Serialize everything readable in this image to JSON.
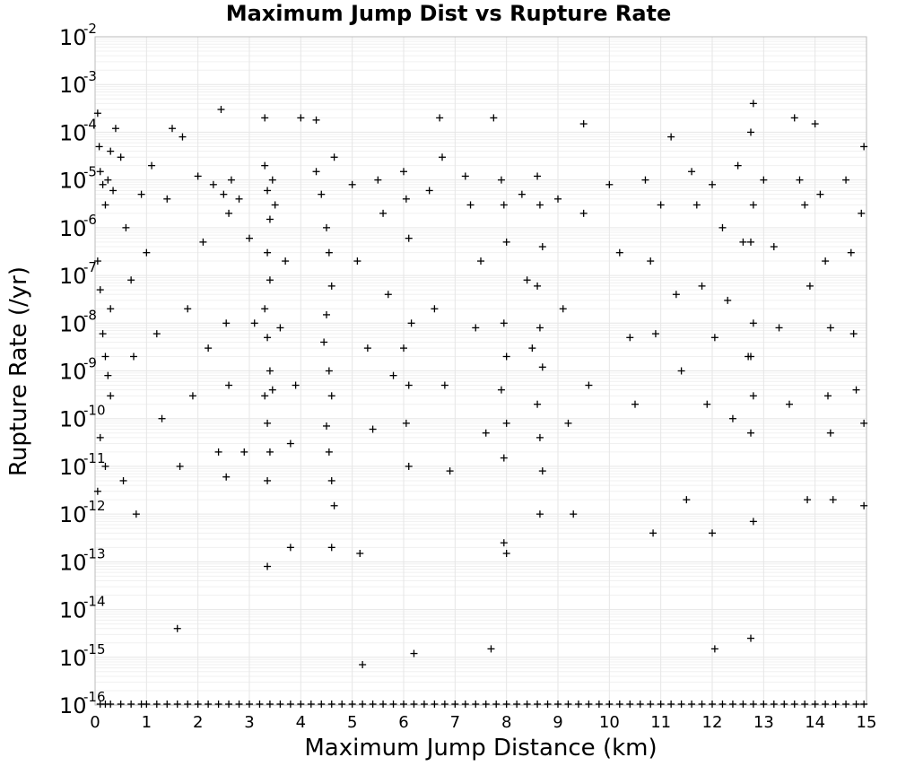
{
  "chart_data": {
    "type": "scatter",
    "title": "Maximum Jump Dist vs Rupture Rate",
    "xlabel": "Maximum Jump Distance (km)",
    "ylabel": "Rupture Rate (/yr)",
    "xlim": [
      0,
      15
    ],
    "ylim": [
      1e-16,
      0.01
    ],
    "yscale": "log",
    "grid": true,
    "legend": "none",
    "marker": "plus",
    "marker_color": "#000000",
    "x_ticks": [
      "0",
      "1",
      "2",
      "3",
      "4",
      "5",
      "6",
      "7",
      "8",
      "9",
      "10",
      "11",
      "12",
      "13",
      "14",
      "15"
    ],
    "y_ticks": [
      {
        "base": "10",
        "exp": "-2",
        "value": 0.01
      },
      {
        "base": "10",
        "exp": "-3",
        "value": 0.001
      },
      {
        "base": "10",
        "exp": "-4",
        "value": 0.0001
      },
      {
        "base": "10",
        "exp": "-5",
        "value": 1e-05
      },
      {
        "base": "10",
        "exp": "-6",
        "value": 1e-06
      },
      {
        "base": "10",
        "exp": "-7",
        "value": 1e-07
      },
      {
        "base": "10",
        "exp": "-8",
        "value": 1e-08
      },
      {
        "base": "10",
        "exp": "-9",
        "value": 1e-09
      },
      {
        "base": "10",
        "exp": "-10",
        "value": 1e-10
      },
      {
        "base": "10",
        "exp": "-11",
        "value": 1e-11
      },
      {
        "base": "10",
        "exp": "-12",
        "value": 1e-12
      },
      {
        "base": "10",
        "exp": "-13",
        "value": 1e-13
      },
      {
        "base": "10",
        "exp": "-14",
        "value": 1e-14
      },
      {
        "base": "10",
        "exp": "-15",
        "value": 1e-15
      },
      {
        "base": "10",
        "exp": "-16",
        "value": 1e-16
      }
    ],
    "points": [
      [
        0.05,
        0.00025
      ],
      [
        0.08,
        5e-05
      ],
      [
        0.1,
        1.5e-05
      ],
      [
        0.15,
        8e-06
      ],
      [
        0.2,
        3e-06
      ],
      [
        0.25,
        1e-05
      ],
      [
        0.3,
        4e-05
      ],
      [
        0.35,
        6e-06
      ],
      [
        0.4,
        0.00012
      ],
      [
        0.05,
        2e-07
      ],
      [
        0.1,
        5e-08
      ],
      [
        0.2,
        2e-09
      ],
      [
        0.25,
        8e-10
      ],
      [
        0.3,
        3e-10
      ],
      [
        0.1,
        4e-11
      ],
      [
        0.2,
        1e-11
      ],
      [
        0.05,
        3e-12
      ],
      [
        0.3,
        2e-08
      ],
      [
        0.15,
        6e-09
      ],
      [
        0.5,
        3e-05
      ],
      [
        0.6,
        1e-06
      ],
      [
        0.7,
        8e-08
      ],
      [
        0.75,
        2e-09
      ],
      [
        0.8,
        1e-12
      ],
      [
        0.9,
        5e-06
      ],
      [
        0.55,
        5e-12
      ],
      [
        1.0,
        3e-07
      ],
      [
        1.1,
        2e-05
      ],
      [
        1.2,
        6e-09
      ],
      [
        1.3,
        1e-10
      ],
      [
        1.4,
        4e-06
      ],
      [
        1.5,
        0.00012
      ],
      [
        1.6,
        4e-15
      ],
      [
        1.65,
        1e-11
      ],
      [
        1.7,
        8e-05
      ],
      [
        1.8,
        2e-08
      ],
      [
        1.9,
        3e-10
      ],
      [
        2.0,
        1.2e-05
      ],
      [
        2.1,
        5e-07
      ],
      [
        2.2,
        3e-09
      ],
      [
        2.3,
        8e-06
      ],
      [
        2.4,
        2e-11
      ],
      [
        2.45,
        0.0003
      ],
      [
        2.5,
        5e-06
      ],
      [
        2.55,
        1e-08
      ],
      [
        2.6,
        2e-06
      ],
      [
        2.6,
        5e-10
      ],
      [
        2.55,
        6e-12
      ],
      [
        2.65,
        1e-05
      ],
      [
        2.8,
        4e-06
      ],
      [
        2.9,
        2e-11
      ],
      [
        3.0,
        6e-07
      ],
      [
        3.1,
        1e-08
      ],
      [
        3.3,
        2e-05
      ],
      [
        3.35,
        6e-06
      ],
      [
        3.4,
        1.5e-06
      ],
      [
        3.35,
        3e-07
      ],
      [
        3.4,
        8e-08
      ],
      [
        3.3,
        2e-08
      ],
      [
        3.35,
        5e-09
      ],
      [
        3.4,
        1e-09
      ],
      [
        3.3,
        3e-10
      ],
      [
        3.35,
        8e-11
      ],
      [
        3.4,
        2e-11
      ],
      [
        3.35,
        5e-12
      ],
      [
        3.35,
        8e-14
      ],
      [
        3.3,
        0.0002
      ],
      [
        3.45,
        1e-05
      ],
      [
        3.45,
        4e-10
      ],
      [
        3.5,
        3e-06
      ],
      [
        3.6,
        8e-09
      ],
      [
        3.7,
        2e-07
      ],
      [
        3.8,
        3e-11
      ],
      [
        3.8,
        2e-13
      ],
      [
        3.9,
        5e-10
      ],
      [
        4.0,
        0.0002
      ],
      [
        4.3,
        1.5e-05
      ],
      [
        4.4,
        5e-06
      ],
      [
        4.5,
        1e-06
      ],
      [
        4.55,
        3e-07
      ],
      [
        4.6,
        6e-08
      ],
      [
        4.5,
        1.5e-08
      ],
      [
        4.45,
        4e-09
      ],
      [
        4.55,
        1e-09
      ],
      [
        4.6,
        3e-10
      ],
      [
        4.5,
        7e-11
      ],
      [
        4.55,
        2e-11
      ],
      [
        4.6,
        5e-12
      ],
      [
        4.65,
        1.5e-12
      ],
      [
        4.6,
        2e-13
      ],
      [
        4.3,
        0.00018
      ],
      [
        4.65,
        3e-05
      ],
      [
        5.0,
        8e-06
      ],
      [
        5.1,
        2e-07
      ],
      [
        5.15,
        1.5e-13
      ],
      [
        5.2,
        7e-16
      ],
      [
        5.3,
        3e-09
      ],
      [
        5.4,
        6e-11
      ],
      [
        5.5,
        1e-05
      ],
      [
        5.6,
        2e-06
      ],
      [
        5.7,
        4e-08
      ],
      [
        5.8,
        8e-10
      ],
      [
        6.0,
        1.5e-05
      ],
      [
        6.05,
        4e-06
      ],
      [
        6.1,
        6e-07
      ],
      [
        6.15,
        1e-08
      ],
      [
        6.0,
        3e-09
      ],
      [
        6.1,
        5e-10
      ],
      [
        6.05,
        8e-11
      ],
      [
        6.1,
        1e-11
      ],
      [
        6.2,
        1.2e-15
      ],
      [
        6.5,
        6e-06
      ],
      [
        6.6,
        2e-08
      ],
      [
        6.7,
        0.0002
      ],
      [
        6.75,
        3e-05
      ],
      [
        6.8,
        5e-10
      ],
      [
        6.9,
        8e-12
      ],
      [
        7.2,
        1.2e-05
      ],
      [
        7.3,
        3e-06
      ],
      [
        7.4,
        8e-09
      ],
      [
        7.5,
        2e-07
      ],
      [
        7.6,
        5e-11
      ],
      [
        7.7,
        1.5e-15
      ],
      [
        7.75,
        0.0002
      ],
      [
        7.9,
        1e-05
      ],
      [
        7.95,
        3e-06
      ],
      [
        8.0,
        5e-07
      ],
      [
        7.95,
        1e-08
      ],
      [
        8.0,
        2e-09
      ],
      [
        7.9,
        4e-10
      ],
      [
        8.0,
        8e-11
      ],
      [
        7.95,
        1.5e-11
      ],
      [
        7.95,
        2.5e-13
      ],
      [
        8.0,
        1.5e-13
      ],
      [
        8.3,
        5e-06
      ],
      [
        8.4,
        8e-08
      ],
      [
        8.5,
        3e-09
      ],
      [
        8.6,
        1.2e-05
      ],
      [
        8.65,
        3e-06
      ],
      [
        8.7,
        4e-07
      ],
      [
        8.6,
        6e-08
      ],
      [
        8.65,
        8e-09
      ],
      [
        8.7,
        1.2e-09
      ],
      [
        8.6,
        2e-10
      ],
      [
        8.65,
        4e-11
      ],
      [
        8.7,
        8e-12
      ],
      [
        8.65,
        1e-12
      ],
      [
        9.0,
        4e-06
      ],
      [
        9.1,
        2e-08
      ],
      [
        9.2,
        8e-11
      ],
      [
        9.3,
        1e-12
      ],
      [
        9.5,
        0.00015
      ],
      [
        9.5,
        2e-06
      ],
      [
        9.6,
        5e-10
      ],
      [
        10.0,
        8e-06
      ],
      [
        10.2,
        3e-07
      ],
      [
        10.4,
        5e-09
      ],
      [
        10.5,
        2e-10
      ],
      [
        10.7,
        1e-05
      ],
      [
        10.8,
        2e-07
      ],
      [
        10.85,
        4e-13
      ],
      [
        10.9,
        6e-09
      ],
      [
        11.0,
        3e-06
      ],
      [
        11.2,
        8e-05
      ],
      [
        11.3,
        4e-08
      ],
      [
        11.4,
        1e-09
      ],
      [
        11.5,
        2e-12
      ],
      [
        11.6,
        1.5e-05
      ],
      [
        11.7,
        3e-06
      ],
      [
        11.8,
        6e-08
      ],
      [
        11.9,
        2e-10
      ],
      [
        12.0,
        8e-06
      ],
      [
        12.05,
        5e-09
      ],
      [
        12.0,
        4e-13
      ],
      [
        12.05,
        1.5e-15
      ],
      [
        12.2,
        1e-06
      ],
      [
        12.3,
        3e-08
      ],
      [
        12.4,
        1e-10
      ],
      [
        12.5,
        2e-05
      ],
      [
        12.6,
        5e-07
      ],
      [
        12.7,
        2e-09
      ],
      [
        12.8,
        0.0004
      ],
      [
        12.75,
        0.0001
      ],
      [
        12.8,
        3e-06
      ],
      [
        12.75,
        5e-07
      ],
      [
        12.8,
        1e-08
      ],
      [
        12.75,
        2e-09
      ],
      [
        12.8,
        3e-10
      ],
      [
        12.75,
        5e-11
      ],
      [
        12.8,
        7e-13
      ],
      [
        12.75,
        2.5e-15
      ],
      [
        13.0,
        1e-05
      ],
      [
        13.2,
        4e-07
      ],
      [
        13.3,
        8e-09
      ],
      [
        13.5,
        2e-10
      ],
      [
        13.6,
        0.0002
      ],
      [
        13.7,
        1e-05
      ],
      [
        13.8,
        3e-06
      ],
      [
        13.9,
        6e-08
      ],
      [
        13.85,
        2e-12
      ],
      [
        14.0,
        0.00015
      ],
      [
        14.1,
        5e-06
      ],
      [
        14.2,
        2e-07
      ],
      [
        14.3,
        8e-09
      ],
      [
        14.25,
        3e-10
      ],
      [
        14.3,
        5e-11
      ],
      [
        14.35,
        2e-12
      ],
      [
        14.6,
        1e-05
      ],
      [
        14.7,
        3e-07
      ],
      [
        14.75,
        6e-09
      ],
      [
        14.8,
        4e-10
      ],
      [
        14.9,
        2e-06
      ],
      [
        14.95,
        5e-05
      ],
      [
        14.95,
        8e-11
      ],
      [
        14.95,
        1.5e-12
      ]
    ],
    "floor_points_x": [
      0.1,
      0.2,
      0.3,
      0.5,
      0.7,
      0.9,
      1.0,
      1.2,
      1.4,
      1.6,
      1.8,
      2.0,
      2.2,
      2.4,
      2.6,
      2.8,
      3.0,
      3.2,
      3.4,
      3.6,
      3.8,
      4.0,
      4.2,
      4.4,
      4.6,
      4.8,
      5.0,
      5.2,
      5.4,
      5.6,
      5.8,
      6.0,
      6.2,
      6.4,
      6.6,
      6.8,
      7.0,
      7.2,
      7.4,
      7.6,
      7.8,
      8.0,
      8.2,
      8.4,
      8.6,
      8.8,
      9.0,
      9.2,
      9.4,
      9.6,
      9.8,
      10.0,
      10.2,
      10.4,
      10.6,
      10.8,
      11.0,
      11.2,
      11.4,
      11.6,
      11.8,
      12.0,
      12.2,
      12.4,
      12.6,
      12.8,
      13.0,
      13.2,
      13.4,
      13.6,
      13.8,
      14.0,
      14.2,
      14.4,
      14.6,
      14.8,
      14.95
    ]
  }
}
